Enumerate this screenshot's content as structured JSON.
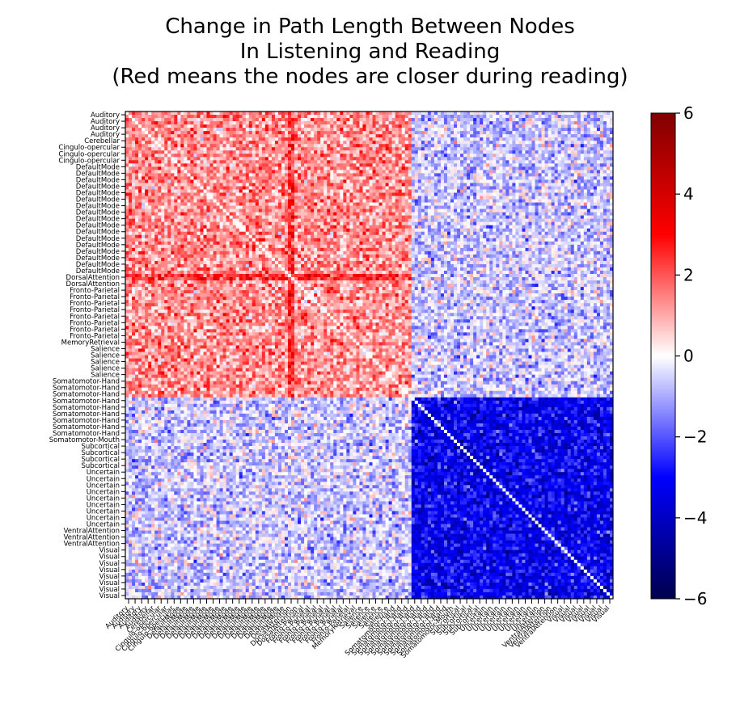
{
  "chart_data": {
    "type": "heatmap",
    "title": "Change in Path Length Between Nodes\nIn Listening and Reading\n(Red means the nodes are closer during reading)",
    "xlabel": "",
    "ylabel": "",
    "colormap": "seismic",
    "color_low": "#00004d",
    "color_mid": "#ffffff",
    "color_high": "#800000",
    "vmin": -6,
    "vmax": 6,
    "colorbar_ticks": [
      "6",
      "4",
      "2",
      "0",
      "−2",
      "−4",
      "−6"
    ],
    "row_labels": [
      "Auditory",
      "Auditory",
      "Auditory",
      "Auditory",
      "Cerebellar",
      "Cingulo-opercular",
      "Cingulo-opercular",
      "Cingulo-opercular",
      "DefaultMode",
      "DefaultMode",
      "DefaultMode",
      "DefaultMode",
      "DefaultMode",
      "DefaultMode",
      "DefaultMode",
      "DefaultMode",
      "DefaultMode",
      "DefaultMode",
      "DefaultMode",
      "DefaultMode",
      "DefaultMode",
      "DefaultMode",
      "DefaultMode",
      "DefaultMode",
      "DefaultMode",
      "DorsalAttention",
      "DorsalAttention",
      "Fronto-Parietal",
      "Fronto-Parietal",
      "Fronto-Parietal",
      "Fronto-Parietal",
      "Fronto-Parietal",
      "Fronto-Parietal",
      "Fronto-Parietal",
      "Fronto-Parietal",
      "MemoryRetrieval",
      "Salience",
      "Salience",
      "Salience",
      "Salience",
      "Salience",
      "Somatomotor-Hand",
      "Somatomotor-Hand",
      "Somatomotor-Hand",
      "Somatomotor-Hand",
      "Somatomotor-Hand",
      "Somatomotor-Hand",
      "Somatomotor-Hand",
      "Somatomotor-Hand",
      "Somatomotor-Hand",
      "Somatomotor-Mouth",
      "Subcortical",
      "Subcortical",
      "Subcortical",
      "Subcortical",
      "Uncertain",
      "Uncertain",
      "Uncertain",
      "Uncertain",
      "Uncertain",
      "Uncertain",
      "Uncertain",
      "Uncertain",
      "Uncertain",
      "VentralAttention",
      "VentralAttention",
      "VentralAttention",
      "Visual",
      "Visual",
      "Visual",
      "Visual",
      "Visual",
      "Visual",
      "Visual",
      "Visual"
    ],
    "col_labels": [
      "Auditory",
      "Auditory",
      "Auditory",
      "Auditory",
      "Cerebellar",
      "Cingulo-opercular",
      "Cingulo-opercular",
      "Cingulo-opercular",
      "DefaultMode",
      "DefaultMode",
      "DefaultMode",
      "DefaultMode",
      "DefaultMode",
      "DefaultMode",
      "DefaultMode",
      "DefaultMode",
      "DefaultMode",
      "DefaultMode",
      "DefaultMode",
      "DefaultMode",
      "DefaultMode",
      "DefaultMode",
      "DefaultMode",
      "DefaultMode",
      "DefaultMode",
      "DorsalAttention",
      "DorsalAttention",
      "Fronto-Parietal",
      "Fronto-Parietal",
      "Fronto-Parietal",
      "Fronto-Parietal",
      "Fronto-Parietal",
      "Fronto-Parietal",
      "Fronto-Parietal",
      "Fronto-Parietal",
      "MemoryRetrieval",
      "Salience",
      "Salience",
      "Salience",
      "Salience",
      "Salience",
      "Somatomotor-Hand",
      "Somatomotor-Hand",
      "Somatomotor-Hand",
      "Somatomotor-Hand",
      "Somatomotor-Hand",
      "Somatomotor-Hand",
      "Somatomotor-Hand",
      "Somatomotor-Hand",
      "Somatomotor-Hand",
      "Somatomotor-Mouth",
      "Subcortical",
      "Subcortical",
      "Subcortical",
      "Subcortical",
      "Uncertain",
      "Uncertain",
      "Uncertain",
      "Uncertain",
      "Uncertain",
      "Uncertain",
      "Uncertain",
      "Uncertain",
      "Uncertain",
      "VentralAttention",
      "VentralAttention",
      "VentralAttention",
      "Visual",
      "Visual",
      "Visual",
      "Visual",
      "Visual",
      "Visual",
      "Visual",
      "Visual"
    ],
    "values_description_source": "approximate",
    "block_means": {
      "general": 1.3,
      "visual_vs_visual": -3.2,
      "visual_vs_other": -0.6,
      "salience_row_col": 2.6,
      "somatomotor_row_col": 1.6
    },
    "grid": false,
    "legend": "colorbar-right"
  }
}
